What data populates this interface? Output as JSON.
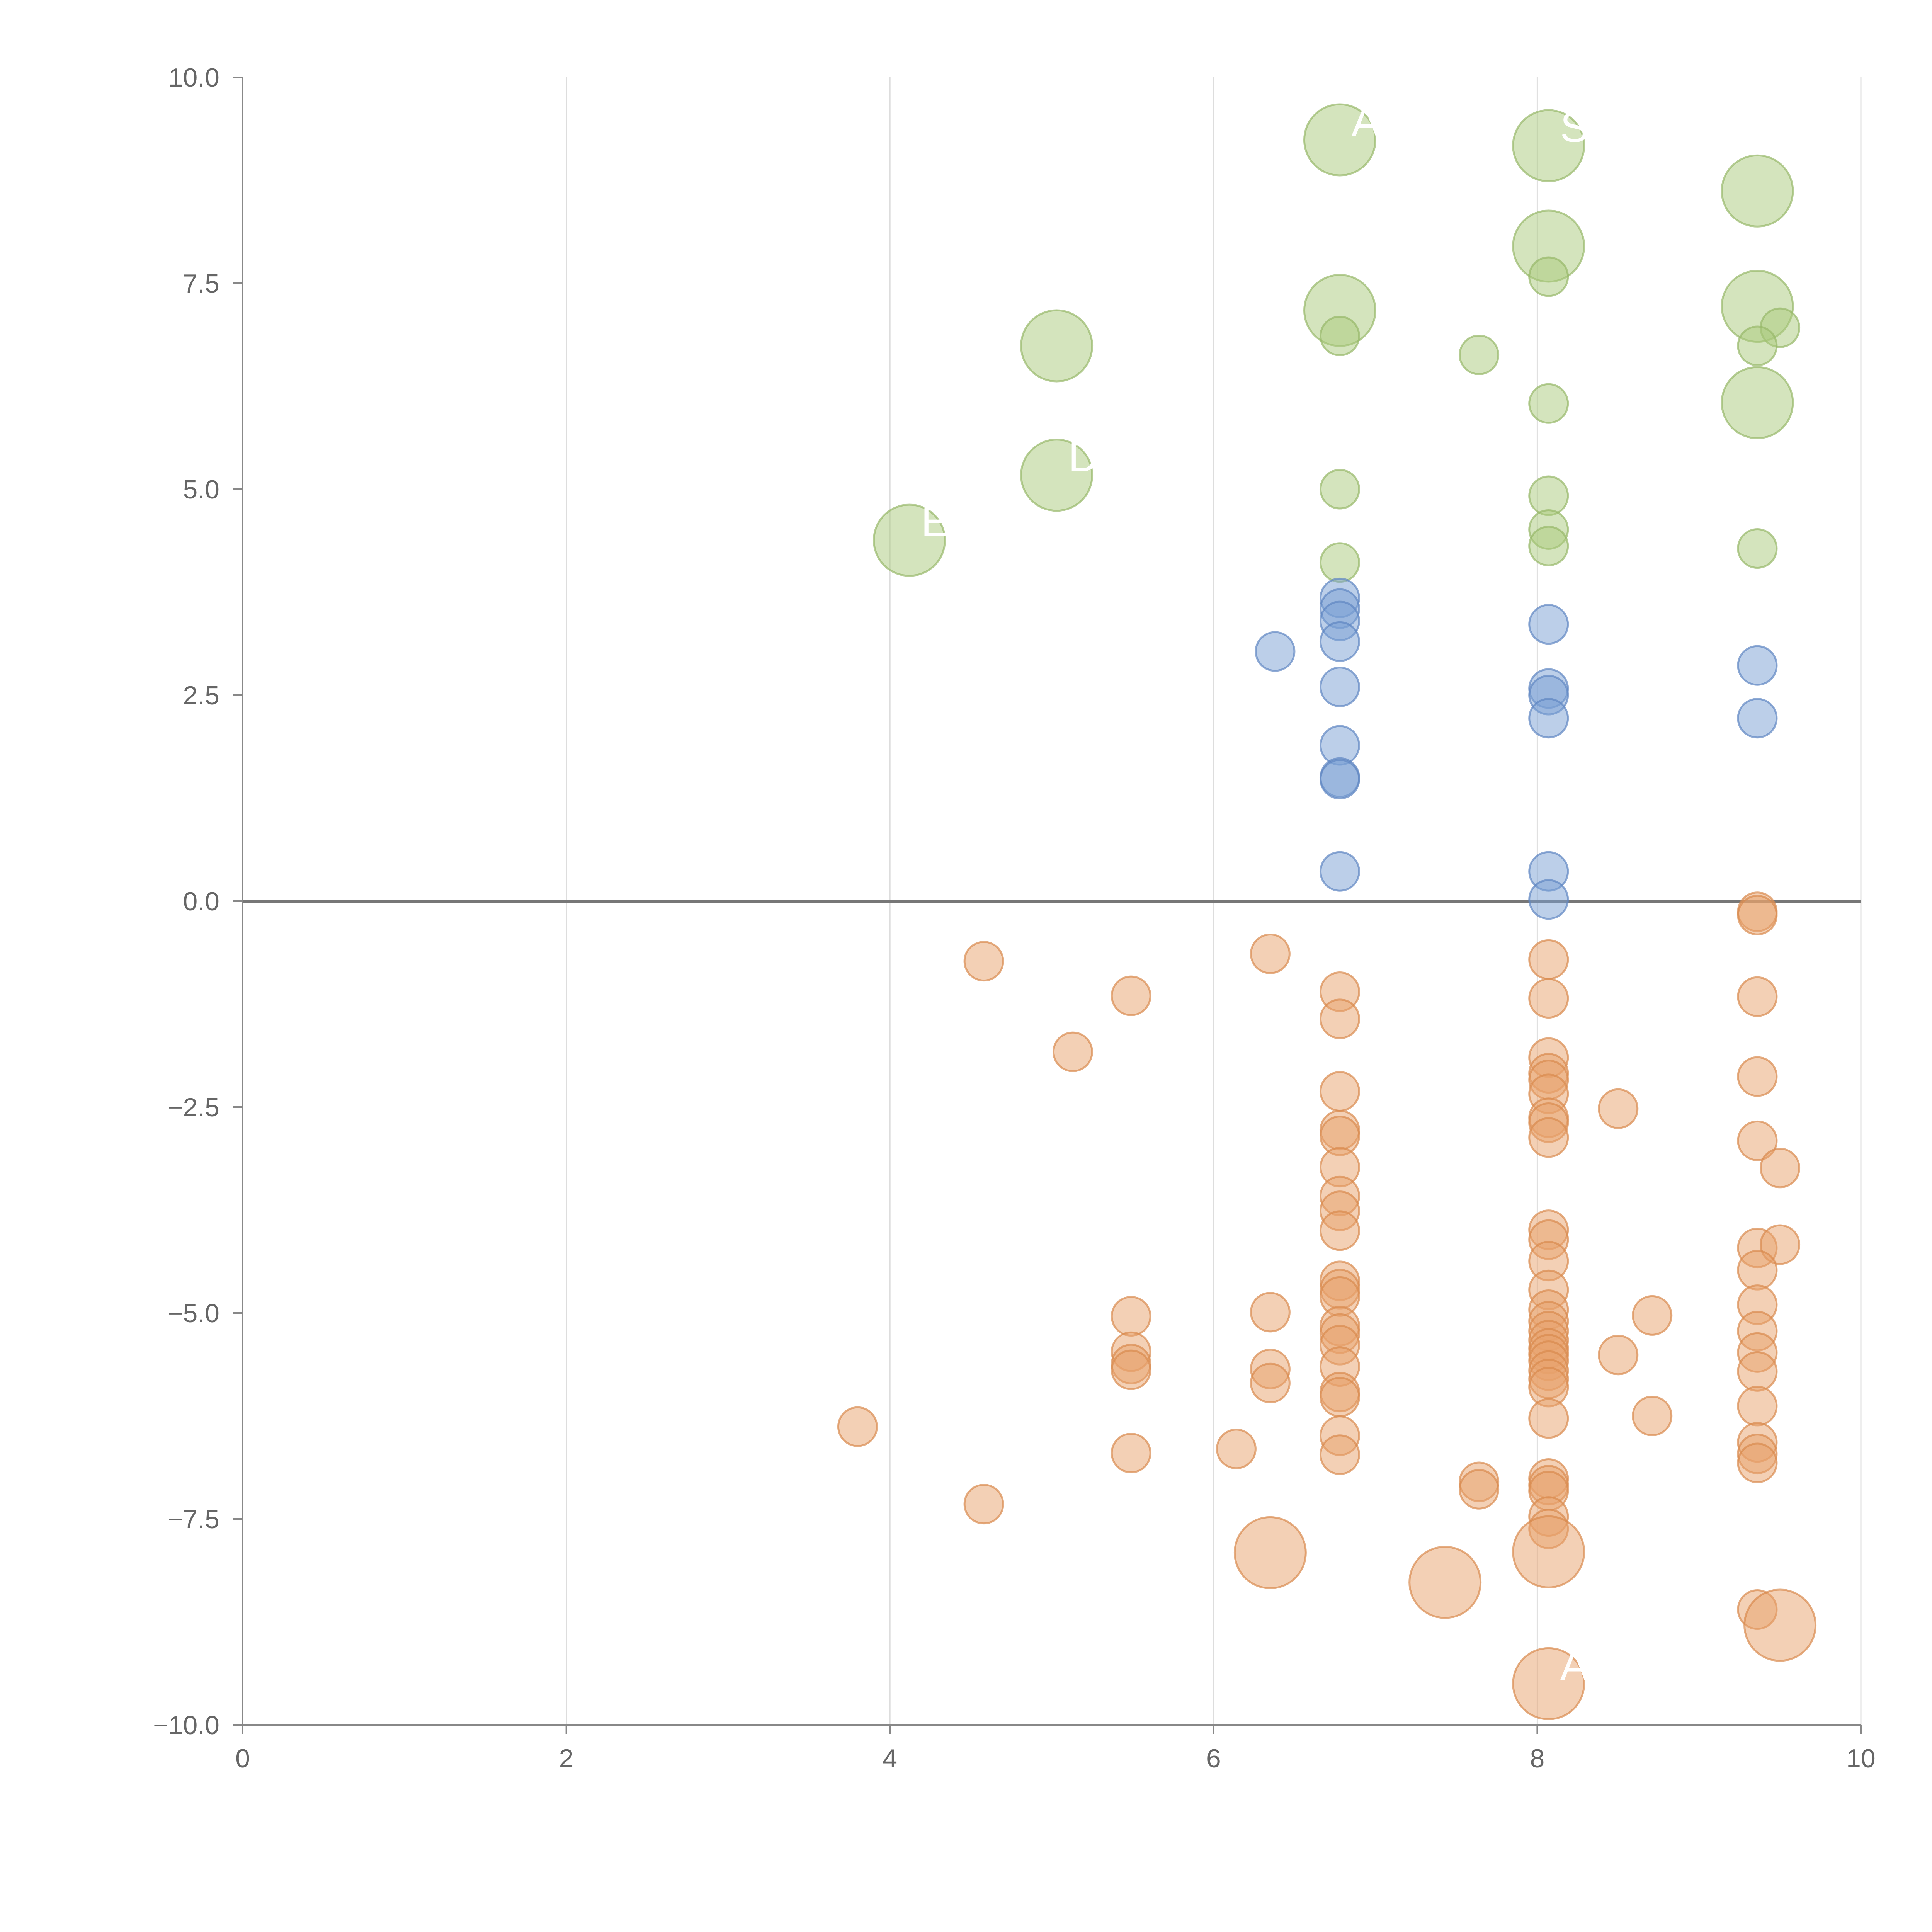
{
  "chart_data": {
    "type": "scatter",
    "title": "",
    "xlabel": "",
    "ylabel": "",
    "xlim": [
      0,
      10
    ],
    "ylim": [
      -10,
      10
    ],
    "x_ticks": [
      "0",
      "2",
      "4",
      "6",
      "8",
      "10"
    ],
    "y_ticks": [
      "−10.0",
      "−7.5",
      "−5.0",
      "−2.5",
      "0.0",
      "2.5",
      "5.0",
      "7.5",
      "10.0"
    ],
    "x_tick_values": [
      0,
      2,
      4,
      6,
      8,
      10
    ],
    "y_tick_values": [
      -10,
      -7.5,
      -5,
      -2.5,
      0,
      2.5,
      5,
      7.5,
      10
    ],
    "vertical_grid": true,
    "zero_line": true,
    "colors": {
      "green": "#a9c97c",
      "blue": "#7a9fd4",
      "orange": "#e8a26b",
      "green_stroke": "#97b86a",
      "blue_stroke": "#5f86c2",
      "orange_stroke": "#d98a4e"
    },
    "series": [
      {
        "name": "green",
        "points": [
          [
            6.78,
            9.24,
            2
          ],
          [
            8.07,
            9.17,
            2
          ],
          [
            9.36,
            8.62,
            2
          ],
          [
            8.07,
            7.95,
            2
          ],
          [
            8.07,
            7.58,
            1
          ],
          [
            6.78,
            7.17,
            2
          ],
          [
            9.36,
            7.22,
            2
          ],
          [
            9.5,
            6.96,
            1
          ],
          [
            6.78,
            6.86,
            1
          ],
          [
            5.03,
            6.74,
            2
          ],
          [
            7.64,
            6.63,
            1
          ],
          [
            9.36,
            6.74,
            1
          ],
          [
            8.07,
            6.04,
            1
          ],
          [
            9.36,
            6.05,
            2
          ],
          [
            5.03,
            5.17,
            2
          ],
          [
            6.78,
            5.0,
            1
          ],
          [
            8.07,
            4.92,
            1
          ],
          [
            8.07,
            4.51,
            1
          ],
          [
            4.12,
            4.38,
            2
          ],
          [
            8.07,
            4.31,
            1
          ],
          [
            9.36,
            4.28,
            1
          ],
          [
            6.78,
            4.11,
            1
          ]
        ]
      },
      {
        "name": "blue",
        "points": [
          [
            6.78,
            3.68,
            1
          ],
          [
            6.78,
            3.55,
            1
          ],
          [
            6.78,
            3.4,
            1
          ],
          [
            8.07,
            3.36,
            1
          ],
          [
            6.78,
            3.15,
            1
          ],
          [
            6.38,
            3.03,
            1
          ],
          [
            9.36,
            2.86,
            1
          ],
          [
            6.78,
            2.6,
            1
          ],
          [
            8.07,
            2.58,
            1
          ],
          [
            8.07,
            2.5,
            1
          ],
          [
            8.07,
            2.22,
            1
          ],
          [
            9.36,
            2.22,
            1
          ],
          [
            6.78,
            1.89,
            1
          ],
          [
            6.78,
            1.5,
            1
          ],
          [
            6.78,
            1.48,
            1
          ],
          [
            6.78,
            0.36,
            1
          ],
          [
            8.07,
            0.36,
            1
          ],
          [
            8.07,
            0.02,
            1
          ]
        ]
      },
      {
        "name": "orange",
        "points": [
          [
            9.36,
            -0.13,
            1
          ],
          [
            9.36,
            -0.17,
            1
          ],
          [
            6.35,
            -0.64,
            1
          ],
          [
            8.07,
            -0.71,
            1
          ],
          [
            4.58,
            -0.73,
            1
          ],
          [
            6.78,
            -1.1,
            1
          ],
          [
            5.49,
            -1.15,
            1
          ],
          [
            9.36,
            -1.16,
            1
          ],
          [
            8.07,
            -1.18,
            1
          ],
          [
            6.78,
            -1.43,
            1
          ],
          [
            5.13,
            -1.83,
            1
          ],
          [
            8.07,
            -1.9,
            1
          ],
          [
            8.07,
            -2.09,
            1
          ],
          [
            8.07,
            -2.17,
            1
          ],
          [
            9.36,
            -2.13,
            1
          ],
          [
            6.78,
            -2.31,
            1
          ],
          [
            8.07,
            -2.34,
            1
          ],
          [
            8.5,
            -2.52,
            1
          ],
          [
            8.07,
            -2.63,
            1
          ],
          [
            8.07,
            -2.69,
            1
          ],
          [
            6.78,
            -2.78,
            1
          ],
          [
            6.78,
            -2.85,
            1
          ],
          [
            8.07,
            -2.87,
            1
          ],
          [
            9.36,
            -2.91,
            1
          ],
          [
            6.78,
            -3.23,
            1
          ],
          [
            9.5,
            -3.24,
            1
          ],
          [
            6.78,
            -3.58,
            1
          ],
          [
            6.78,
            -3.76,
            1
          ],
          [
            6.78,
            -4.0,
            1
          ],
          [
            8.07,
            -3.99,
            1
          ],
          [
            8.07,
            -4.11,
            1
          ],
          [
            9.36,
            -4.21,
            1
          ],
          [
            9.5,
            -4.17,
            1
          ],
          [
            8.07,
            -4.37,
            1
          ],
          [
            9.36,
            -4.48,
            1
          ],
          [
            6.78,
            -4.61,
            1
          ],
          [
            8.07,
            -4.72,
            1
          ],
          [
            6.78,
            -4.71,
            1
          ],
          [
            6.78,
            -4.8,
            1
          ],
          [
            9.36,
            -4.9,
            1
          ],
          [
            8.07,
            -4.96,
            1
          ],
          [
            5.49,
            -5.04,
            1
          ],
          [
            6.35,
            -4.99,
            1
          ],
          [
            8.71,
            -5.03,
            1
          ],
          [
            8.07,
            -5.1,
            1
          ],
          [
            6.78,
            -5.16,
            1
          ],
          [
            6.78,
            -5.25,
            1
          ],
          [
            8.07,
            -5.22,
            1
          ],
          [
            9.36,
            -5.22,
            1
          ],
          [
            8.07,
            -5.33,
            1
          ],
          [
            6.78,
            -5.39,
            1
          ],
          [
            8.07,
            -5.43,
            1
          ],
          [
            8.07,
            -5.5,
            1
          ],
          [
            5.49,
            -5.47,
            1
          ],
          [
            9.36,
            -5.48,
            1
          ],
          [
            8.5,
            -5.51,
            1
          ],
          [
            8.07,
            -5.58,
            1
          ],
          [
            5.49,
            -5.62,
            1
          ],
          [
            6.78,
            -5.65,
            1
          ],
          [
            6.35,
            -5.68,
            1
          ],
          [
            5.49,
            -5.69,
            1
          ],
          [
            8.07,
            -5.7,
            1
          ],
          [
            9.36,
            -5.71,
            1
          ],
          [
            8.07,
            -5.8,
            1
          ],
          [
            6.35,
            -5.85,
            1
          ],
          [
            8.07,
            -5.9,
            1
          ],
          [
            6.78,
            -5.96,
            1
          ],
          [
            6.78,
            -6.02,
            1
          ],
          [
            9.36,
            -6.13,
            1
          ],
          [
            8.71,
            -6.25,
            1
          ],
          [
            8.07,
            -6.28,
            1
          ],
          [
            3.8,
            -6.38,
            1
          ],
          [
            6.78,
            -6.49,
            1
          ],
          [
            9.36,
            -6.57,
            1
          ],
          [
            6.14,
            -6.65,
            1
          ],
          [
            5.49,
            -6.7,
            1
          ],
          [
            9.36,
            -6.71,
            1
          ],
          [
            6.78,
            -6.72,
            1
          ],
          [
            9.36,
            -6.82,
            1
          ],
          [
            8.07,
            -7.01,
            1
          ],
          [
            7.64,
            -7.05,
            1
          ],
          [
            8.07,
            -7.09,
            1
          ],
          [
            7.64,
            -7.14,
            1
          ],
          [
            8.07,
            -7.16,
            1
          ],
          [
            4.58,
            -7.32,
            1
          ],
          [
            8.07,
            -7.47,
            1
          ],
          [
            8.07,
            -7.62,
            1
          ],
          [
            6.35,
            -7.91,
            2
          ],
          [
            8.07,
            -7.9,
            2
          ],
          [
            7.43,
            -8.27,
            2
          ],
          [
            9.36,
            -8.6,
            1
          ],
          [
            9.5,
            -8.79,
            2
          ],
          [
            8.07,
            -9.5,
            2
          ]
        ]
      }
    ],
    "labels": [
      {
        "text": "A",
        "x": 6.78,
        "y": 9.24
      },
      {
        "text": "S",
        "x": 8.07,
        "y": 9.17
      },
      {
        "text": "D",
        "x": 5.03,
        "y": 5.17
      },
      {
        "text": "E",
        "x": 4.12,
        "y": 4.38
      },
      {
        "text": "AF",
        "x": 8.07,
        "y": -9.5
      }
    ]
  }
}
